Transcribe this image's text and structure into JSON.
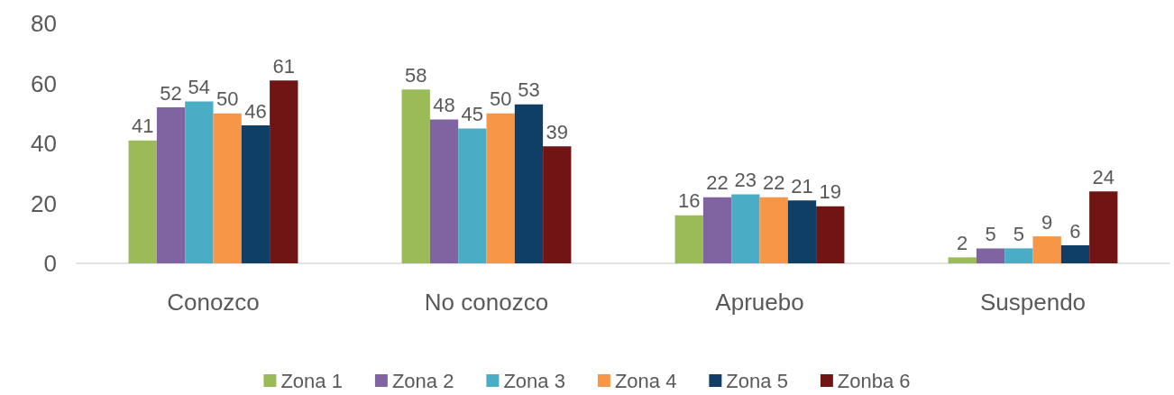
{
  "chart_data": {
    "type": "bar",
    "categories": [
      "Conozco",
      "No conozco",
      "Apruebo",
      "Suspendo"
    ],
    "series": [
      {
        "name": "Zona 1",
        "color": "#9bbb59",
        "values": [
          41,
          58,
          16,
          2
        ]
      },
      {
        "name": "Zona 2",
        "color": "#8064a2",
        "values": [
          52,
          48,
          22,
          5
        ]
      },
      {
        "name": "Zona 3",
        "color": "#4bacc6",
        "values": [
          54,
          45,
          23,
          5
        ]
      },
      {
        "name": "Zona 4",
        "color": "#f79646",
        "values": [
          50,
          50,
          22,
          9
        ]
      },
      {
        "name": "Zona 5",
        "color": "#0f3f67",
        "values": [
          46,
          53,
          21,
          6
        ]
      },
      {
        "name": "Zonba 6",
        "color": "#701414",
        "values": [
          61,
          39,
          19,
          24
        ]
      }
    ],
    "ylim": [
      0,
      80
    ],
    "yticks": [
      0,
      20,
      40,
      60,
      80
    ],
    "grid": false,
    "legend": "bottom",
    "data_labels": true
  }
}
